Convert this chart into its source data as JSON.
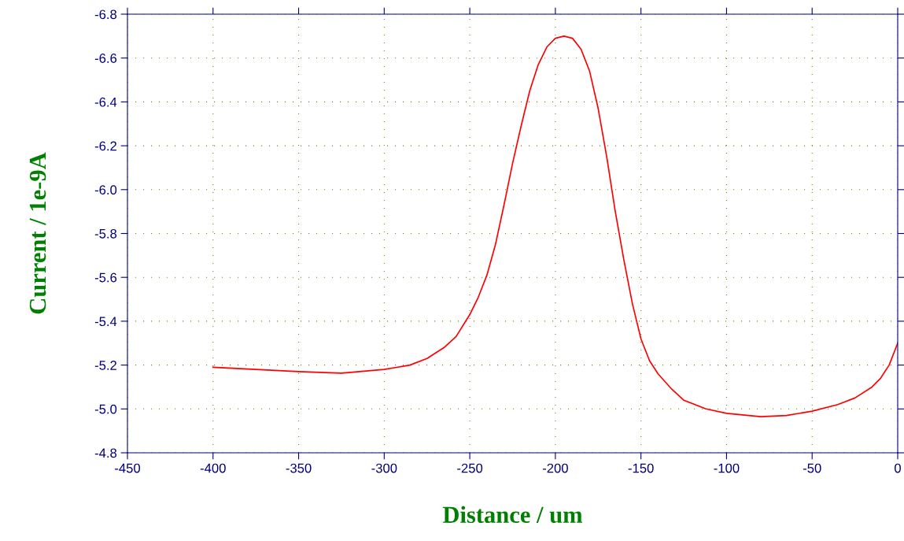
{
  "chart_data": {
    "type": "line",
    "xlabel": "Distance / um",
    "ylabel": "Current / 1e-9A",
    "xlim": [
      -450,
      0
    ],
    "xticks": [
      -450,
      -400,
      -350,
      -300,
      -250,
      -200,
      -150,
      -100,
      -50,
      0
    ],
    "ylim": [
      -4.8,
      -6.8
    ],
    "yticks": [
      -4.8,
      {
        "value": -5,
        "label": "-5.0"
      },
      -5.2,
      -5.4,
      -5.6,
      -5.8,
      {
        "value": -6,
        "label": "-6.0"
      },
      -6.2,
      -6.4,
      -6.6,
      -6.8
    ],
    "grid": true,
    "legend": false,
    "marker": "none",
    "line_style": "solid",
    "series": [
      {
        "color": "#ff0000",
        "x": [
          -400,
          -375,
          -350,
          -325,
          -300,
          -285,
          -275,
          -265,
          -258,
          -250,
          -245,
          -240,
          -235,
          -230,
          -225,
          -220,
          -215,
          -210,
          -205,
          -200,
          -195,
          -190,
          -185,
          -180,
          -175,
          -170,
          -165,
          -160,
          -155,
          -150,
          -145,
          -140,
          -132,
          -125,
          -112,
          -100,
          -80,
          -65,
          -50,
          -35,
          -25,
          -15,
          -10,
          -5,
          0
        ],
        "values": [
          -5.19,
          -5.18,
          -5.17,
          -5.163,
          -5.18,
          -5.2,
          -5.23,
          -5.28,
          -5.33,
          -5.43,
          -5.51,
          -5.61,
          -5.75,
          -5.93,
          -6.12,
          -6.29,
          -6.45,
          -6.57,
          -6.65,
          -6.69,
          -6.7,
          -6.69,
          -6.64,
          -6.54,
          -6.37,
          -6.15,
          -5.9,
          -5.68,
          -5.48,
          -5.32,
          -5.22,
          -5.16,
          -5.09,
          -5.04,
          -5.0,
          -4.98,
          -4.965,
          -4.97,
          -4.99,
          -5.02,
          -5.05,
          -5.1,
          -5.14,
          -5.2,
          -5.3
        ]
      }
    ]
  }
}
